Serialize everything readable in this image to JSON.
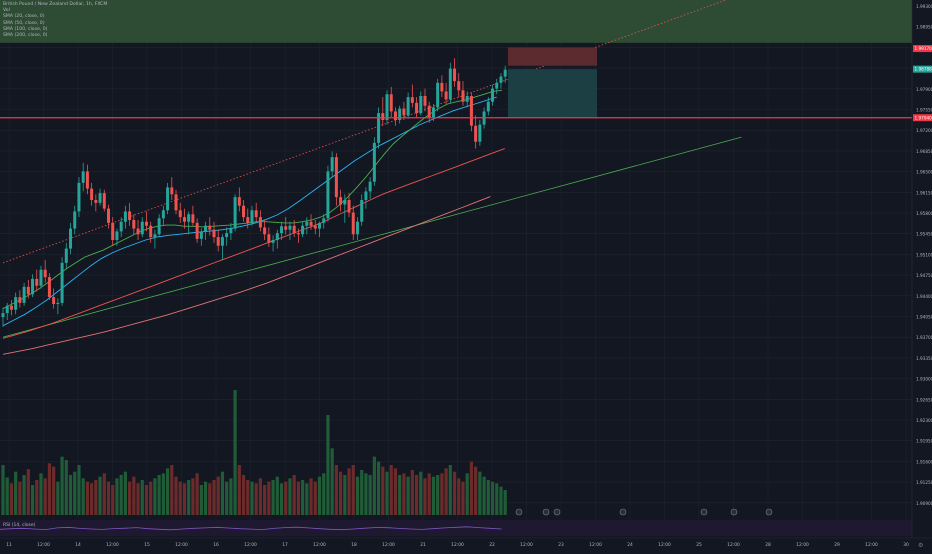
{
  "header": {
    "title": "British Pound / New Zealand Dollar, 1h, FXCM",
    "indicators": [
      "Vol",
      "SMA (20, close, 0)",
      "SMA (50, close, 0)",
      "SMA (100, close, 0)",
      "SMA (200, close, 0)"
    ]
  },
  "rsi_label": "RSI (14, close)",
  "price_scale": {
    "labels": [
      "1.99300",
      "1.98950",
      "1.98600",
      "1.98250",
      "1.97900",
      "1.97550",
      "1.97200",
      "1.96850",
      "1.96500",
      "1.96150",
      "1.95800",
      "1.95450",
      "1.95100",
      "1.94750",
      "1.94400",
      "1.94050",
      "1.93700",
      "1.93350",
      "1.93000",
      "1.92650",
      "1.92300",
      "1.91950",
      "1.91600",
      "1.91250",
      "1.90900"
    ]
  },
  "price_badges": {
    "stop_level": "1.99170",
    "current_price": "1.98788",
    "support_level": "1.97940"
  },
  "time_axis": {
    "labels": [
      "11",
      "12:00",
      "14",
      "12:00",
      "15",
      "12:00",
      "16",
      "12:00",
      "17",
      "12:00",
      "18",
      "12:00",
      "21",
      "12:00",
      "22",
      "12:00",
      "23",
      "12:00",
      "24",
      "12:00",
      "25",
      "12:00",
      "28",
      "12:00",
      "29",
      "12:00",
      "30"
    ]
  },
  "colors": {
    "background": "#131722",
    "up_candle": "#26a69a",
    "down_candle": "#ef5350",
    "support_line": "#f23645",
    "channel_band": "#2e4b34",
    "stop_zone": "#5c2b2f",
    "target_zone": "#1c3f43",
    "sma20": "#4caf50",
    "sma50": "#29b6f6",
    "sma100": "#ef5350",
    "sma200": "#e57373",
    "rsi": "#7e57c2"
  },
  "chart_data": {
    "type": "candlestick",
    "symbol": "GBPNZD",
    "timeframe": "1h",
    "candles_ohlc": [
      [
        1.9445,
        1.9462,
        1.9428,
        1.9452
      ],
      [
        1.9452,
        1.947,
        1.944,
        1.9465
      ],
      [
        1.9465,
        1.9475,
        1.9448,
        1.9458
      ],
      [
        1.9458,
        1.9488,
        1.945,
        1.948
      ],
      [
        1.948,
        1.9492,
        1.9462,
        1.947
      ],
      [
        1.947,
        1.9505,
        1.9465,
        1.9498
      ],
      [
        1.9498,
        1.951,
        1.9478,
        1.9485
      ],
      [
        1.9485,
        1.952,
        1.948,
        1.9512
      ],
      [
        1.9512,
        1.9528,
        1.949,
        1.95
      ],
      [
        1.95,
        1.9535,
        1.9495,
        1.9528
      ],
      [
        1.9528,
        1.9545,
        1.9505,
        1.9515
      ],
      [
        1.9515,
        1.9522,
        1.9475,
        1.948
      ],
      [
        1.948,
        1.9495,
        1.946,
        1.9468
      ],
      [
        1.9468,
        1.9478,
        1.945,
        1.947
      ],
      [
        1.947,
        1.955,
        1.9465,
        1.954
      ],
      [
        1.954,
        1.9575,
        1.953,
        1.9565
      ],
      [
        1.9565,
        1.961,
        1.9555,
        1.96
      ],
      [
        1.96,
        1.964,
        1.959,
        1.963
      ],
      [
        1.963,
        1.969,
        1.962,
        1.968
      ],
      [
        1.968,
        1.9715,
        1.9665,
        1.97
      ],
      [
        1.97,
        1.9712,
        1.966,
        1.967
      ],
      [
        1.967,
        1.968,
        1.964,
        1.965
      ],
      [
        1.965,
        1.966,
        1.963,
        1.9645
      ],
      [
        1.9645,
        1.967,
        1.964,
        1.9662
      ],
      [
        1.9662,
        1.9668,
        1.963,
        1.9635
      ],
      [
        1.9635,
        1.9642,
        1.96,
        1.961
      ],
      [
        1.961,
        1.962,
        1.957,
        1.958
      ],
      [
        1.958,
        1.96,
        1.957,
        1.9595
      ],
      [
        1.9595,
        1.962,
        1.9585,
        1.9612
      ],
      [
        1.9612,
        1.964,
        1.96,
        1.963
      ],
      [
        1.963,
        1.9645,
        1.9605,
        1.9615
      ],
      [
        1.9615,
        1.9625,
        1.959,
        1.96
      ],
      [
        1.96,
        1.9615,
        1.958,
        1.959
      ],
      [
        1.959,
        1.962,
        1.9585,
        1.9612
      ],
      [
        1.9612,
        1.963,
        1.9595,
        1.9605
      ],
      [
        1.9605,
        1.9612,
        1.9575,
        1.9585
      ],
      [
        1.9585,
        1.9598,
        1.9565,
        1.959
      ],
      [
        1.959,
        1.9625,
        1.9585,
        1.9618
      ],
      [
        1.9618,
        1.964,
        1.9605,
        1.9632
      ],
      [
        1.9632,
        1.968,
        1.9625,
        1.9672
      ],
      [
        1.9672,
        1.969,
        1.965,
        1.966
      ],
      [
        1.966,
        1.9668,
        1.9625,
        1.9632
      ],
      [
        1.9632,
        1.9645,
        1.961,
        1.962
      ],
      [
        1.962,
        1.9635,
        1.96,
        1.9612
      ],
      [
        1.9612,
        1.963,
        1.959,
        1.9625
      ],
      [
        1.9625,
        1.964,
        1.9605,
        1.961
      ],
      [
        1.961,
        1.9618,
        1.9575,
        1.9582
      ],
      [
        1.9582,
        1.96,
        1.957,
        1.9595
      ],
      [
        1.9595,
        1.9612,
        1.958,
        1.9605
      ],
      [
        1.9605,
        1.962,
        1.9588,
        1.9598
      ],
      [
        1.9598,
        1.9612,
        1.9575,
        1.9585
      ],
      [
        1.9585,
        1.9598,
        1.956,
        1.957
      ],
      [
        1.957,
        1.959,
        1.9545,
        1.9585
      ],
      [
        1.9585,
        1.9602,
        1.957,
        1.9592
      ],
      [
        1.9592,
        1.961,
        1.958,
        1.96
      ],
      [
        1.96,
        1.966,
        1.9595,
        1.9655
      ],
      [
        1.9655,
        1.9672,
        1.963,
        1.964
      ],
      [
        1.964,
        1.965,
        1.9612,
        1.962
      ],
      [
        1.962,
        1.9635,
        1.96,
        1.961
      ],
      [
        1.961,
        1.964,
        1.9605,
        1.9632
      ],
      [
        1.9632,
        1.9645,
        1.9612,
        1.962
      ],
      [
        1.962,
        1.9632,
        1.9595,
        1.9602
      ],
      [
        1.9602,
        1.9615,
        1.958,
        1.959
      ],
      [
        1.959,
        1.9602,
        1.9568,
        1.9575
      ],
      [
        1.9575,
        1.9588,
        1.956,
        1.958
      ],
      [
        1.958,
        1.9598,
        1.9565,
        1.9592
      ],
      [
        1.9592,
        1.9612,
        1.958,
        1.9604
      ],
      [
        1.9604,
        1.962,
        1.959,
        1.9598
      ],
      [
        1.9598,
        1.9612,
        1.958,
        1.9605
      ],
      [
        1.9605,
        1.9615,
        1.9585,
        1.9592
      ],
      [
        1.9592,
        1.96,
        1.9575,
        1.959
      ],
      [
        1.959,
        1.9612,
        1.9585,
        1.9605
      ],
      [
        1.9605,
        1.962,
        1.959,
        1.9612
      ],
      [
        1.9612,
        1.9625,
        1.9598,
        1.9605
      ],
      [
        1.9605,
        1.9615,
        1.959,
        1.96
      ],
      [
        1.96,
        1.9612,
        1.9585,
        1.961
      ],
      [
        1.961,
        1.9625,
        1.96,
        1.9618
      ],
      [
        1.9618,
        1.971,
        1.9612,
        1.97
      ],
      [
        1.97,
        1.9735,
        1.969,
        1.9725
      ],
      [
        1.9725,
        1.9732,
        1.964,
        1.9655
      ],
      [
        1.9655,
        1.9668,
        1.963,
        1.9642
      ],
      [
        1.9642,
        1.966,
        1.961,
        1.965
      ],
      [
        1.965,
        1.9662,
        1.962,
        1.9628
      ],
      [
        1.9628,
        1.964,
        1.958,
        1.959
      ],
      [
        1.959,
        1.962,
        1.958,
        1.9612
      ],
      [
        1.9612,
        1.966,
        1.9605,
        1.965
      ],
      [
        1.965,
        1.9672,
        1.9635,
        1.9665
      ],
      [
        1.9665,
        1.969,
        1.9652,
        1.9682
      ],
      [
        1.9682,
        1.976,
        1.9675,
        1.975
      ],
      [
        1.975,
        1.9812,
        1.974,
        1.9802
      ],
      [
        1.9802,
        1.983,
        1.978,
        1.979
      ],
      [
        1.979,
        1.9842,
        1.9782,
        1.9835
      ],
      [
        1.9835,
        1.9848,
        1.9795,
        1.9805
      ],
      [
        1.9805,
        1.9812,
        1.978,
        1.979
      ],
      [
        1.979,
        1.9815,
        1.9784,
        1.981
      ],
      [
        1.981,
        1.9822,
        1.979,
        1.9798
      ],
      [
        1.9798,
        1.9838,
        1.9792,
        1.983
      ],
      [
        1.983,
        1.9852,
        1.9812,
        1.982
      ],
      [
        1.982,
        1.983,
        1.9795,
        1.9802
      ],
      [
        1.9802,
        1.984,
        1.9798,
        1.9832
      ],
      [
        1.9832,
        1.9845,
        1.9805,
        1.9815
      ],
      [
        1.9815,
        1.9822,
        1.9785,
        1.9795
      ],
      [
        1.9795,
        1.9818,
        1.9788,
        1.9812
      ],
      [
        1.9812,
        1.9862,
        1.9805,
        1.9855
      ],
      [
        1.9855,
        1.9868,
        1.983,
        1.984
      ],
      [
        1.984,
        1.9855,
        1.9818,
        1.9826
      ],
      [
        1.9826,
        1.989,
        1.982,
        1.988
      ],
      [
        1.988,
        1.9898,
        1.9848,
        1.9858
      ],
      [
        1.9858,
        1.9872,
        1.983,
        1.9842
      ],
      [
        1.9842,
        1.9858,
        1.9815,
        1.9822
      ],
      [
        1.9822,
        1.984,
        1.9812,
        1.9832
      ],
      [
        1.9832,
        1.9838,
        1.977,
        1.978
      ],
      [
        1.978,
        1.9798,
        1.974,
        1.9752
      ],
      [
        1.9752,
        1.979,
        1.9745,
        1.9782
      ],
      [
        1.9782,
        1.9812,
        1.9775,
        1.9805
      ],
      [
        1.9805,
        1.983,
        1.9798,
        1.9822
      ],
      [
        1.9822,
        1.9852,
        1.9815,
        1.9845
      ],
      [
        1.9845,
        1.9862,
        1.9835,
        1.9855
      ],
      [
        1.9855,
        1.9872,
        1.9845,
        1.9866
      ],
      [
        1.9866,
        1.9885,
        1.9855,
        1.9878
      ]
    ],
    "volume": [
      60,
      45,
      38,
      52,
      40,
      48,
      55,
      36,
      42,
      50,
      44,
      62,
      58,
      40,
      70,
      66,
      48,
      52,
      60,
      44,
      40,
      38,
      42,
      46,
      50,
      40,
      36,
      44,
      48,
      52,
      40,
      46,
      38,
      42,
      36,
      40,
      44,
      48,
      50,
      56,
      60,
      46,
      40,
      38,
      42,
      44,
      50,
      36,
      40,
      38,
      42,
      46,
      52,
      40,
      44,
      150,
      60,
      48,
      42,
      40,
      38,
      44,
      36,
      40,
      42,
      46,
      38,
      40,
      44,
      48,
      40,
      42,
      38,
      44,
      40,
      46,
      50,
      120,
      80,
      60,
      52,
      48,
      56,
      60,
      46,
      54,
      50,
      48,
      70,
      64,
      58,
      52,
      60,
      56,
      48,
      50,
      46,
      54,
      48,
      52,
      44,
      50,
      46,
      48,
      50,
      56,
      60,
      52,
      44,
      40,
      50,
      64,
      58,
      52,
      46,
      42,
      40,
      38,
      34,
      30
    ],
    "sma20": [
      1.946,
      1.9468,
      1.9476,
      1.9485,
      1.9495,
      1.9506,
      1.9518,
      1.953,
      1.954,
      1.955,
      1.9556,
      1.9562,
      1.957,
      1.9578,
      1.9586,
      1.9594,
      1.96,
      1.9604,
      1.9606,
      1.9606,
      1.9604,
      1.9604,
      1.9603,
      1.9604,
      1.9605,
      1.9606,
      1.9608,
      1.961,
      1.9612,
      1.9612,
      1.9611,
      1.961,
      1.961,
      1.9612,
      1.9615,
      1.962,
      1.9628,
      1.964,
      1.9655,
      1.9672,
      1.969,
      1.971,
      1.973,
      1.9748,
      1.9762,
      1.9775,
      1.9788,
      1.98,
      1.981,
      1.9818,
      1.9822,
      1.9825,
      1.983,
      1.9835,
      1.984,
      1.9842
    ],
    "sma50": [
      1.943,
      1.944,
      1.945,
      1.9462,
      1.9475,
      1.949,
      1.9505,
      1.952,
      1.9535,
      1.9548,
      1.9558,
      1.9566,
      1.9573,
      1.958,
      1.9585,
      1.9588,
      1.959,
      1.9592,
      1.9594,
      1.9596,
      1.9598,
      1.9601,
      1.9605,
      1.961,
      1.9616,
      1.9624,
      1.9635,
      1.9648,
      1.9662,
      1.9676,
      1.969,
      1.9704,
      1.9718,
      1.973,
      1.9742,
      1.9752,
      1.9762,
      1.9772,
      1.9782,
      1.979,
      1.9798,
      1.9806,
      1.9812,
      1.9818,
      1.9824,
      1.983
    ],
    "sma100": [
      1.9408,
      1.9414,
      1.942,
      1.9427,
      1.9434,
      1.9442,
      1.945,
      1.9458,
      1.9466,
      1.9474,
      1.9482,
      1.949,
      1.9498,
      1.9506,
      1.9514,
      1.9522,
      1.953,
      1.9538,
      1.9546,
      1.9554,
      1.9562,
      1.957,
      1.9578,
      1.9586,
      1.9594,
      1.9602,
      1.961,
      1.962,
      1.963,
      1.964,
      1.965,
      1.966,
      1.9668,
      1.9676,
      1.9684,
      1.9692,
      1.97,
      1.9708,
      1.9716,
      1.9724,
      1.9732,
      1.974
    ],
    "sma200": [
      1.938,
      1.9385,
      1.939,
      1.9396,
      1.9402,
      1.9408,
      1.9414,
      1.942,
      1.9427,
      1.9434,
      1.9441,
      1.9448,
      1.9456,
      1.9464,
      1.9472,
      1.948,
      1.9488,
      1.9497,
      1.9506,
      1.9516,
      1.9526,
      1.9536,
      1.9546,
      1.9556,
      1.9566,
      1.9576,
      1.9586,
      1.9596,
      1.9606,
      1.9616,
      1.9626,
      1.9636,
      1.9646,
      1.9656
    ],
    "support_level": 1.9794,
    "upper_band": [
      1.9925,
      1.9995
    ],
    "stop_zone": [
      1.9885,
      1.9917
    ],
    "target_zone": [
      1.9794,
      1.9879
    ],
    "trendlines": [
      {
        "from": [
          0,
          1.954
        ],
        "to": [
          175,
          2.001
        ],
        "style": "dotted",
        "color": "#ef5350"
      },
      {
        "from": [
          0,
          1.941
        ],
        "to": [
          175,
          1.976
        ],
        "style": "solid",
        "color": "#4caf50"
      }
    ],
    "rsi": [
      48,
      52,
      55,
      50,
      46,
      58,
      62,
      54,
      50,
      47,
      53,
      56,
      60,
      52,
      48,
      44,
      50,
      55,
      58,
      62,
      57,
      52,
      49,
      46,
      54,
      60,
      63,
      58,
      52,
      48,
      45,
      50,
      56,
      61,
      59,
      54,
      50,
      47,
      52,
      58,
      62,
      66,
      60,
      55,
      50
    ],
    "ylim": [
      1.909,
      2.0
    ],
    "title": "British Pound / New Zealand Dollar, 1h, FXCM",
    "grid": true,
    "legend_position": "top-left"
  }
}
